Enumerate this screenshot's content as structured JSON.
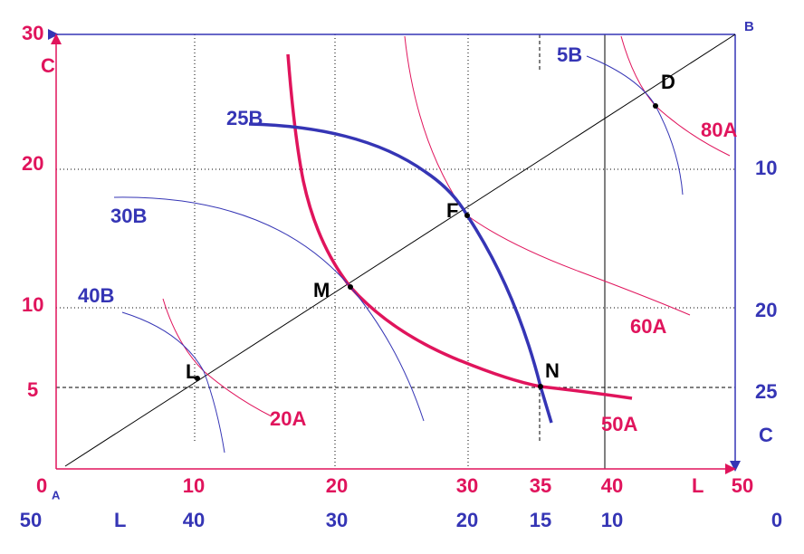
{
  "labels": {
    "origin_a": "0",
    "origin_a_sub": "A",
    "corner_b": "B",
    "capital_a": "C",
    "capital_b": "C",
    "labor_a": "L",
    "labor_b": "L"
  },
  "a_capital_ticks": [
    "30",
    "20",
    "10",
    "5"
  ],
  "b_capital_ticks": [
    "10",
    "20",
    "25"
  ],
  "a_labor_ticks": [
    "10",
    "20",
    "30",
    "35",
    "40",
    "50"
  ],
  "b_labor_ticks": [
    "50",
    "40",
    "30",
    "20",
    "15",
    "10",
    "0"
  ],
  "isoquants_a": [
    "20A",
    "50A",
    "60A",
    "80A"
  ],
  "isoquants_b": [
    "5B",
    "25B",
    "30B",
    "40B"
  ],
  "points": [
    "L",
    "M",
    "F",
    "N",
    "D"
  ]
}
